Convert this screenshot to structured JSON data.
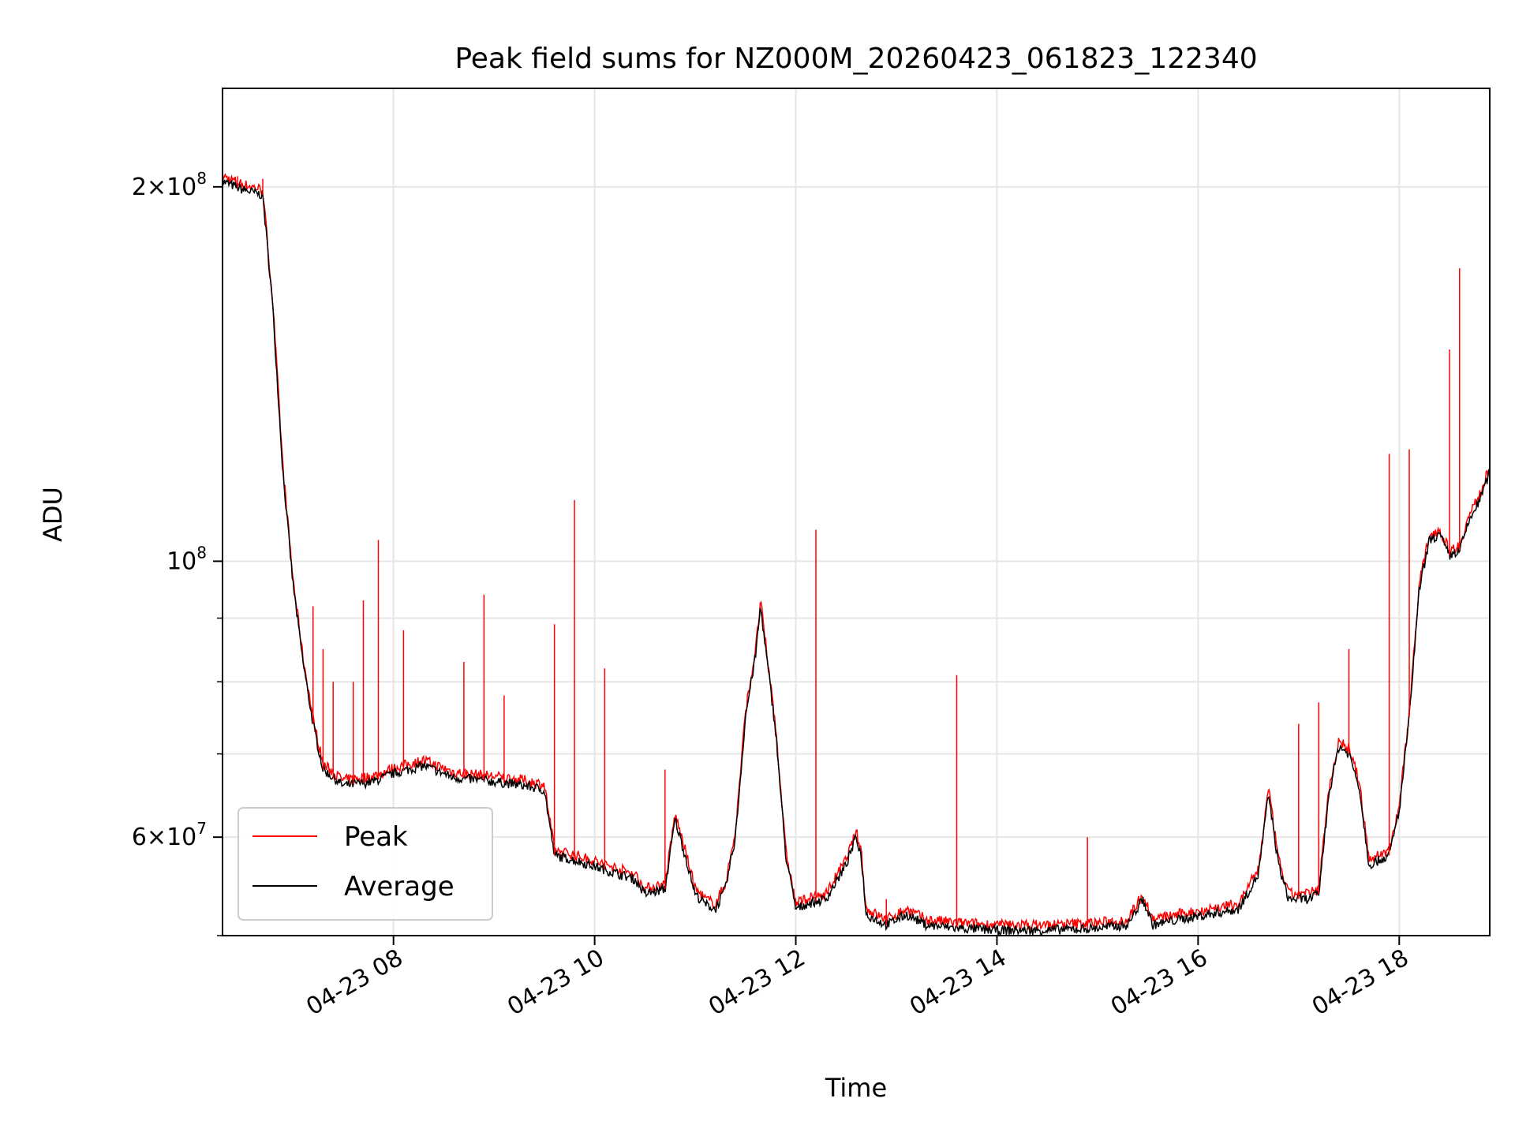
{
  "chart_data": {
    "type": "line",
    "title": "Peak field sums for NZ000M_20260423_061823_122340",
    "xlabel": "Time",
    "ylabel": "ADU",
    "y_scale": "log",
    "ylim": [
      50000000,
      240000000
    ],
    "xlim": [
      "2026-04-23 06:18",
      "2026-04-23 18:54"
    ],
    "grid": true,
    "legend_position": "lower-left",
    "x_ticks": [
      {
        "value": "2026-04-23 08:00",
        "label": "04-23 08"
      },
      {
        "value": "2026-04-23 10:00",
        "label": "04-23 10"
      },
      {
        "value": "2026-04-23 12:00",
        "label": "04-23 12"
      },
      {
        "value": "2026-04-23 14:00",
        "label": "04-23 14"
      },
      {
        "value": "2026-04-23 16:00",
        "label": "04-23 16"
      },
      {
        "value": "2026-04-23 18:00",
        "label": "04-23 18"
      }
    ],
    "y_major_ticks": [
      {
        "value": 60000000,
        "mantissa": "6",
        "exp": "7"
      },
      {
        "value": 100000000,
        "mantissa": "",
        "exp": "8"
      },
      {
        "value": 200000000,
        "mantissa": "2",
        "exp": "8"
      }
    ],
    "y_minor_ticks": [
      50000000,
      70000000,
      80000000,
      90000000
    ],
    "series": [
      {
        "name": "Peak",
        "color": "#ff0000",
        "spikes": [
          [
            "2026-04-23 06:27",
            204000000
          ],
          [
            "2026-04-23 06:42",
            203000000
          ],
          [
            "2026-04-23 06:48",
            160000000
          ],
          [
            "2026-04-23 07:06",
            83000000
          ],
          [
            "2026-04-23 07:12",
            92000000
          ],
          [
            "2026-04-23 07:18",
            85000000
          ],
          [
            "2026-04-23 07:24",
            80000000
          ],
          [
            "2026-04-23 07:36",
            80000000
          ],
          [
            "2026-04-23 07:42",
            93000000
          ],
          [
            "2026-04-23 07:51",
            104000000
          ],
          [
            "2026-04-23 08:06",
            88000000
          ],
          [
            "2026-04-23 08:42",
            83000000
          ],
          [
            "2026-04-23 08:54",
            94000000
          ],
          [
            "2026-04-23 09:06",
            78000000
          ],
          [
            "2026-04-23 09:36",
            89000000
          ],
          [
            "2026-04-23 09:48",
            112000000
          ],
          [
            "2026-04-23 10:06",
            82000000
          ],
          [
            "2026-04-23 10:42",
            68000000
          ],
          [
            "2026-04-23 12:12",
            106000000
          ],
          [
            "2026-04-23 12:54",
            53500000
          ],
          [
            "2026-04-23 13:36",
            81000000
          ],
          [
            "2026-04-23 14:54",
            60000000
          ],
          [
            "2026-04-23 17:00",
            74000000
          ],
          [
            "2026-04-23 17:12",
            77000000
          ],
          [
            "2026-04-23 17:30",
            85000000
          ],
          [
            "2026-04-23 17:54",
            122000000
          ],
          [
            "2026-04-23 18:06",
            123000000
          ],
          [
            "2026-04-23 18:30",
            148000000
          ],
          [
            "2026-04-23 18:36",
            172000000
          ]
        ]
      },
      {
        "name": "Average",
        "color": "#000000",
        "points": [
          [
            "2026-04-23 06:18",
            202000000
          ],
          [
            "2026-04-23 06:30",
            199000000
          ],
          [
            "2026-04-23 06:42",
            197000000
          ],
          [
            "2026-04-23 06:48",
            160000000
          ],
          [
            "2026-04-23 06:54",
            118000000
          ],
          [
            "2026-04-23 07:00",
            96000000
          ],
          [
            "2026-04-23 07:06",
            83000000
          ],
          [
            "2026-04-23 07:12",
            74000000
          ],
          [
            "2026-04-23 07:18",
            68000000
          ],
          [
            "2026-04-23 07:30",
            66000000
          ],
          [
            "2026-04-23 07:48",
            66500000
          ],
          [
            "2026-04-23 08:00",
            67500000
          ],
          [
            "2026-04-23 08:18",
            68500000
          ],
          [
            "2026-04-23 08:36",
            67000000
          ],
          [
            "2026-04-23 09:00",
            66500000
          ],
          [
            "2026-04-23 09:18",
            66000000
          ],
          [
            "2026-04-23 09:30",
            65500000
          ],
          [
            "2026-04-23 09:36",
            58000000
          ],
          [
            "2026-04-23 09:48",
            57500000
          ],
          [
            "2026-04-23 10:06",
            56500000
          ],
          [
            "2026-04-23 10:24",
            55500000
          ],
          [
            "2026-04-23 10:30",
            54000000
          ],
          [
            "2026-04-23 10:42",
            54500000
          ],
          [
            "2026-04-23 10:48",
            62000000
          ],
          [
            "2026-04-23 10:54",
            58000000
          ],
          [
            "2026-04-23 11:00",
            54000000
          ],
          [
            "2026-04-23 11:06",
            53000000
          ],
          [
            "2026-04-23 11:12",
            52500000
          ],
          [
            "2026-04-23 11:18",
            54500000
          ],
          [
            "2026-04-23 11:24",
            60000000
          ],
          [
            "2026-04-23 11:30",
            75000000
          ],
          [
            "2026-04-23 11:36",
            84000000
          ],
          [
            "2026-04-23 11:39",
            92000000
          ],
          [
            "2026-04-23 11:42",
            85000000
          ],
          [
            "2026-04-23 11:48",
            73000000
          ],
          [
            "2026-04-23 11:54",
            58000000
          ],
          [
            "2026-04-23 12:00",
            52500000
          ],
          [
            "2026-04-23 12:06",
            53000000
          ],
          [
            "2026-04-23 12:18",
            53500000
          ],
          [
            "2026-04-23 12:30",
            57000000
          ],
          [
            "2026-04-23 12:36",
            60000000
          ],
          [
            "2026-04-23 12:39",
            58000000
          ],
          [
            "2026-04-23 12:42",
            52000000
          ],
          [
            "2026-04-23 12:54",
            51000000
          ],
          [
            "2026-04-23 13:06",
            52000000
          ],
          [
            "2026-04-23 13:18",
            51000000
          ],
          [
            "2026-04-23 13:36",
            50700000
          ],
          [
            "2026-04-23 14:00",
            50500000
          ],
          [
            "2026-04-23 14:30",
            50500000
          ],
          [
            "2026-04-23 15:00",
            50700000
          ],
          [
            "2026-04-23 15:18",
            51000000
          ],
          [
            "2026-04-23 15:27",
            53500000
          ],
          [
            "2026-04-23 15:33",
            51000000
          ],
          [
            "2026-04-23 15:48",
            51500000
          ],
          [
            "2026-04-23 16:06",
            52000000
          ],
          [
            "2026-04-23 16:24",
            52500000
          ],
          [
            "2026-04-23 16:36",
            56000000
          ],
          [
            "2026-04-23 16:42",
            65000000
          ],
          [
            "2026-04-23 16:48",
            57000000
          ],
          [
            "2026-04-23 16:54",
            53500000
          ],
          [
            "2026-04-23 17:06",
            53500000
          ],
          [
            "2026-04-23 17:12",
            54000000
          ],
          [
            "2026-04-23 17:18",
            65000000
          ],
          [
            "2026-04-23 17:24",
            71000000
          ],
          [
            "2026-04-23 17:30",
            70000000
          ],
          [
            "2026-04-23 17:36",
            66000000
          ],
          [
            "2026-04-23 17:42",
            57000000
          ],
          [
            "2026-04-23 17:54",
            58000000
          ],
          [
            "2026-04-23 18:00",
            63000000
          ],
          [
            "2026-04-23 18:06",
            75000000
          ],
          [
            "2026-04-23 18:12",
            95000000
          ],
          [
            "2026-04-23 18:18",
            104000000
          ],
          [
            "2026-04-23 18:24",
            105000000
          ],
          [
            "2026-04-23 18:30",
            101000000
          ],
          [
            "2026-04-23 18:36",
            102000000
          ],
          [
            "2026-04-23 18:42",
            108000000
          ],
          [
            "2026-04-23 18:48",
            112000000
          ],
          [
            "2026-04-23 18:54",
            118000000
          ]
        ]
      }
    ]
  }
}
